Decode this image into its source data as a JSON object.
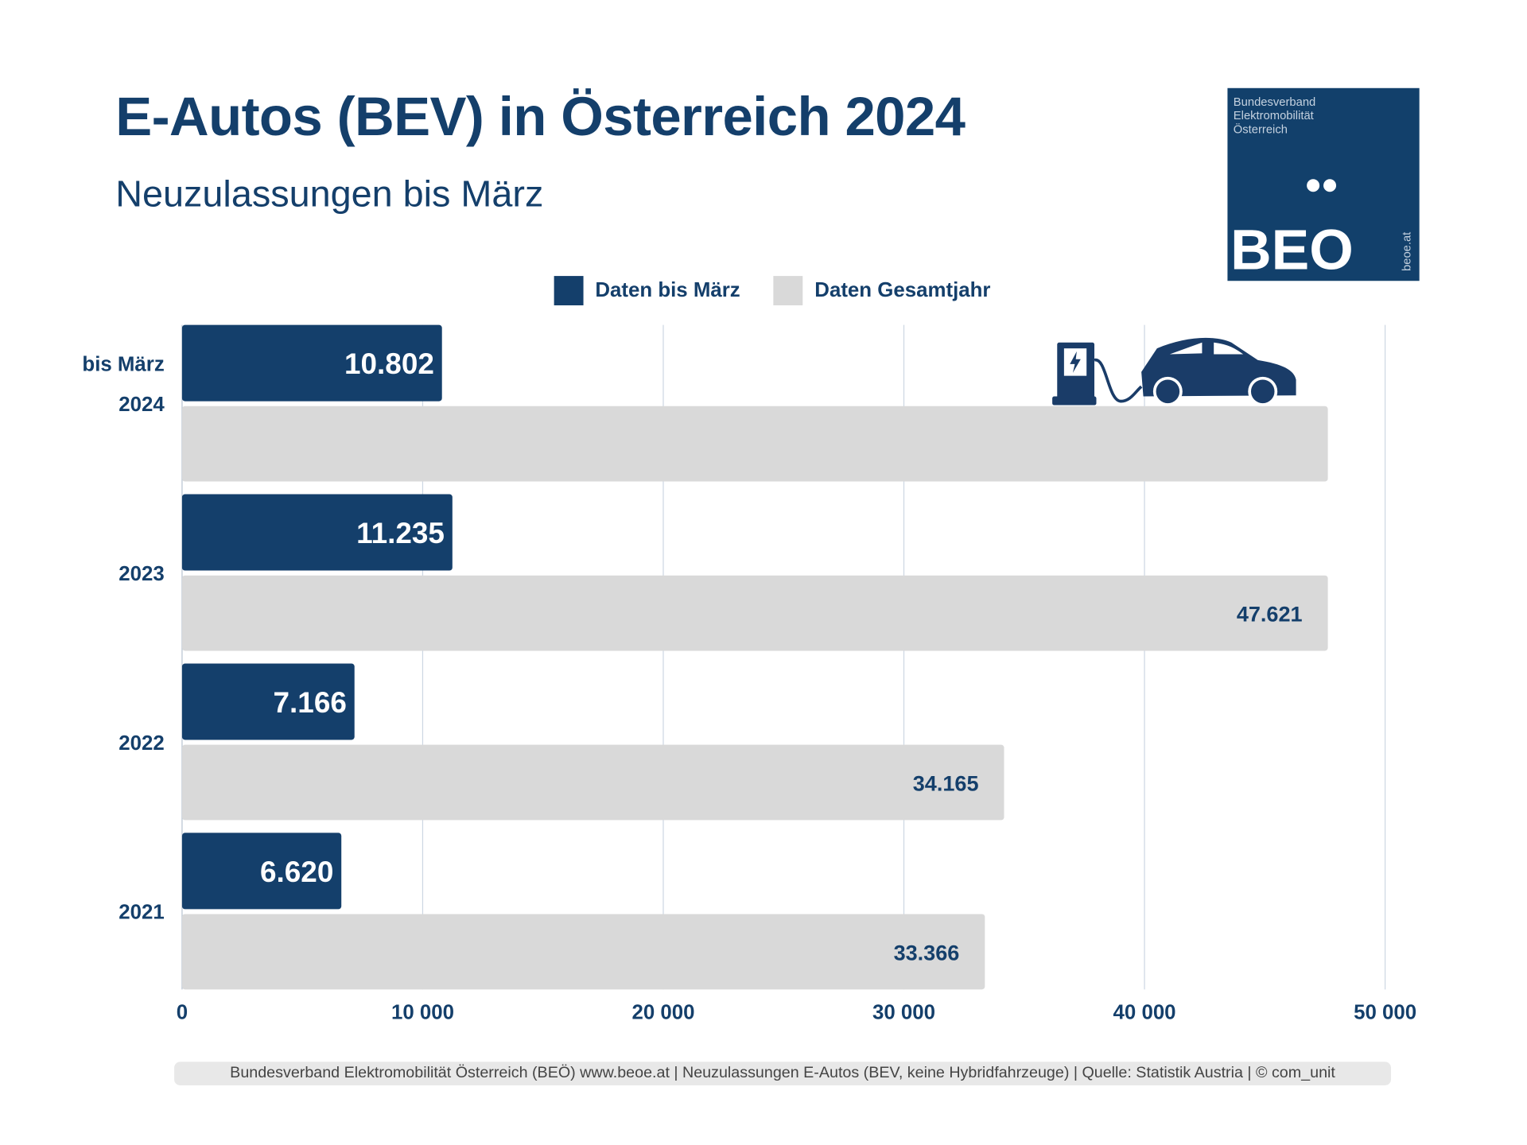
{
  "header": {
    "title": "E-Autos (BEV) in Österreich 2024",
    "subtitle": "Neuzulassungen bis März"
  },
  "logo": {
    "org_lines": [
      "Bundesverband",
      "Elektromobilität",
      "Österreich"
    ],
    "wordmark": "BEO",
    "url": "beoe.at",
    "color": "#12406b"
  },
  "chart_data": {
    "type": "bar",
    "orientation": "horizontal",
    "title": "E-Autos (BEV) in Österreich 2024",
    "subtitle": "Neuzulassungen bis März",
    "categories": [
      "2024",
      "2023",
      "2022",
      "2021"
    ],
    "category_prefix_label": "bis März",
    "series": [
      {
        "name": "Daten bis März",
        "color": "#143f6b",
        "values": [
          10802,
          11235,
          7166,
          6620
        ],
        "labels": [
          "10.802",
          "11.235",
          "7.166",
          "6.620"
        ]
      },
      {
        "name": "Daten Gesamtjahr",
        "color": "#d9d9d9",
        "values": [
          47621,
          47621,
          34165,
          33366
        ],
        "labels": [
          "",
          "47.621",
          "34.165",
          "33.366"
        ]
      }
    ],
    "xlim": [
      0,
      50000
    ],
    "xticks": [
      0,
      10000,
      20000,
      30000,
      40000,
      50000
    ],
    "xtick_labels": [
      "0",
      "10 000",
      "20 000",
      "30 000",
      "40 000",
      "50 000"
    ],
    "grid": true,
    "legend_position": "top-center",
    "icon": "ev-charging-car-icon"
  },
  "footer": "Bundesverband Elektromobilität Österreich (BEÖ) www.beoe.at | Neuzulassungen E-Autos (BEV, keine Hybridfahrzeuge) | Quelle: Statistik Austria | © com_unit"
}
